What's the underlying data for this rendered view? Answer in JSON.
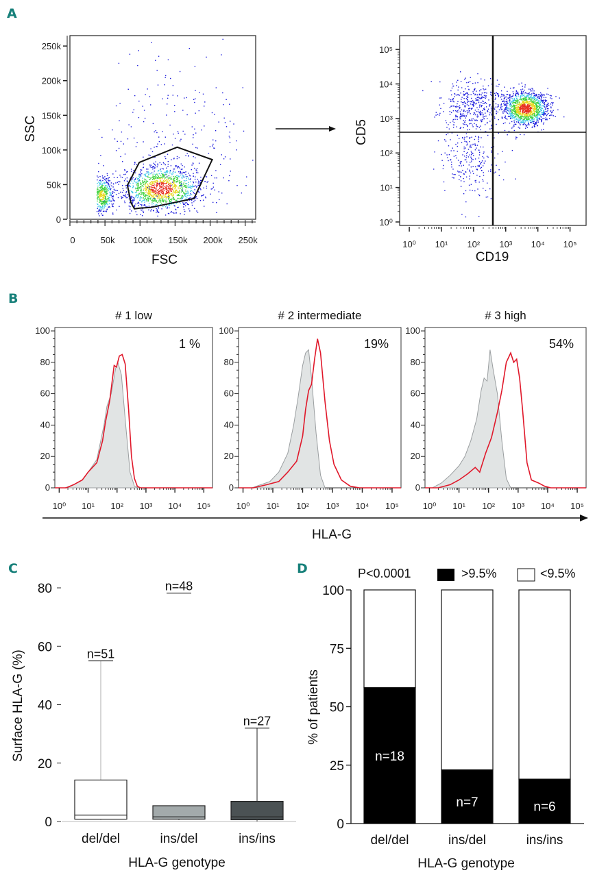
{
  "figure": {
    "panel_labels": [
      "A",
      "B",
      "C",
      "D"
    ],
    "accent_color": "#17807a"
  },
  "chart_data": [
    {
      "id": "A-left",
      "type": "scatter",
      "title": "",
      "xlabel": "FSC",
      "ylabel": "SSC",
      "xlim": [
        0,
        265000
      ],
      "ylim": [
        0,
        265000
      ],
      "x_ticks": [
        "0",
        "50k",
        "100k",
        "150k",
        "200k",
        "250k"
      ],
      "x_tick_values": [
        0,
        50000,
        100000,
        150000,
        200000,
        250000
      ],
      "y_ticks": [
        "0",
        "50k",
        "100k",
        "150k",
        "200k",
        "250k"
      ],
      "y_tick_values": [
        0,
        50000,
        100000,
        150000,
        200000,
        250000
      ],
      "density_colors": [
        "#1a1adc",
        "#3ec8e8",
        "#3ed23e",
        "#e8d820",
        "#e83020"
      ],
      "clusters": [
        {
          "name": "debris",
          "cx": 45000,
          "cy": 35000,
          "sx": 9000,
          "sy": 14000,
          "n": 500
        },
        {
          "name": "lymphocytes",
          "cx": 130000,
          "cy": 45000,
          "sx": 28000,
          "sy": 16000,
          "n": 1300
        },
        {
          "name": "scatter",
          "cx": 150000,
          "cy": 110000,
          "sx": 55000,
          "sy": 60000,
          "n": 260
        }
      ],
      "gate_polygon": [
        [
          92000,
          15000
        ],
        [
          100000,
          16000
        ],
        [
          115000,
          17000
        ],
        [
          177000,
          30000
        ],
        [
          203000,
          86000
        ],
        [
          153000,
          104000
        ],
        [
          99000,
          82000
        ],
        [
          82000,
          49000
        ],
        [
          87000,
          24000
        ]
      ]
    },
    {
      "id": "A-right",
      "type": "scatter",
      "title": "",
      "xlabel": "CD19",
      "ylabel": "CD5",
      "x_scale": "log",
      "y_scale": "log",
      "xlim_log10": [
        -0.3,
        5.5
      ],
      "ylim_log10": [
        -0.1,
        5.4
      ],
      "x_ticks": [
        "10⁰",
        "10¹",
        "10²",
        "10³",
        "10⁴",
        "10⁵"
      ],
      "y_ticks": [
        "10⁰",
        "10¹",
        "10²",
        "10³",
        "10⁴",
        "10⁵"
      ],
      "quadrant_x_log10": 2.6,
      "quadrant_y_log10": 2.6,
      "clusters": [
        {
          "name": "CD5+CD19+",
          "cx": 3.6,
          "cy": 3.3,
          "sx": 0.35,
          "sy": 0.25,
          "n": 1300
        },
        {
          "name": "CD5+CD19-",
          "cx": 2.0,
          "cy": 3.4,
          "sx": 0.5,
          "sy": 0.35,
          "n": 420
        },
        {
          "name": "CD5-CD19-",
          "cx": 1.9,
          "cy": 1.9,
          "sx": 0.45,
          "sy": 0.55,
          "n": 260
        }
      ]
    },
    {
      "id": "B",
      "type": "area",
      "xlabel": "HLA-G",
      "x_scale": "log",
      "xlim_log10": [
        -0.15,
        5.3
      ],
      "ylim": [
        0,
        100
      ],
      "y_ticks": [
        "0",
        "20",
        "40",
        "60",
        "80",
        "100"
      ],
      "x_ticks": [
        "10⁰",
        "10¹",
        "10²",
        "10³",
        "10⁴",
        "10⁵"
      ],
      "series_colors": {
        "isotype_fill": "#e1e4e4",
        "isotype_line": "#9a9ea0",
        "hla_g_line": "#e0182a"
      },
      "histograms": [
        {
          "title": "# 1 low",
          "percent_label": "1 %",
          "isotype": [
            [
              0.2,
              0
            ],
            [
              0.5,
              2
            ],
            [
              0.8,
              5
            ],
            [
              1.0,
              10
            ],
            [
              1.3,
              18
            ],
            [
              1.55,
              40
            ],
            [
              1.65,
              52
            ],
            [
              1.8,
              60
            ],
            [
              1.95,
              76
            ],
            [
              2.03,
              80
            ],
            [
              2.15,
              72
            ],
            [
              2.3,
              40
            ],
            [
              2.45,
              10
            ],
            [
              2.6,
              1
            ],
            [
              2.75,
              0
            ]
          ],
          "hla_g": [
            [
              0.25,
              0
            ],
            [
              0.5,
              2
            ],
            [
              0.8,
              5
            ],
            [
              1.0,
              10
            ],
            [
              1.3,
              16
            ],
            [
              1.5,
              30
            ],
            [
              1.6,
              42
            ],
            [
              1.75,
              56
            ],
            [
              1.9,
              78
            ],
            [
              1.98,
              77
            ],
            [
              2.08,
              84
            ],
            [
              2.18,
              85
            ],
            [
              2.28,
              79
            ],
            [
              2.4,
              50
            ],
            [
              2.5,
              20
            ],
            [
              2.6,
              6
            ],
            [
              2.7,
              1
            ],
            [
              2.8,
              0
            ]
          ]
        },
        {
          "title": "# 2 intermediate",
          "percent_label": "19%",
          "isotype": [
            [
              0.3,
              0
            ],
            [
              0.6,
              2
            ],
            [
              0.9,
              4
            ],
            [
              1.2,
              10
            ],
            [
              1.5,
              22
            ],
            [
              1.7,
              40
            ],
            [
              1.85,
              58
            ],
            [
              2.0,
              78
            ],
            [
              2.1,
              86
            ],
            [
              2.2,
              88
            ],
            [
              2.3,
              70
            ],
            [
              2.45,
              35
            ],
            [
              2.6,
              8
            ],
            [
              2.75,
              0
            ]
          ],
          "hla_g": [
            [
              0.35,
              0
            ],
            [
              0.8,
              2
            ],
            [
              1.2,
              4
            ],
            [
              1.5,
              10
            ],
            [
              1.8,
              17
            ],
            [
              2.0,
              33
            ],
            [
              2.1,
              50
            ],
            [
              2.2,
              62
            ],
            [
              2.3,
              66
            ],
            [
              2.4,
              82
            ],
            [
              2.5,
              95
            ],
            [
              2.6,
              86
            ],
            [
              2.75,
              55
            ],
            [
              2.9,
              30
            ],
            [
              3.05,
              15
            ],
            [
              3.3,
              5
            ],
            [
              3.6,
              1
            ],
            [
              3.9,
              0
            ]
          ]
        },
        {
          "title": "# 3 high",
          "percent_label": "54%",
          "isotype": [
            [
              0.1,
              0
            ],
            [
              0.4,
              3
            ],
            [
              0.7,
              8
            ],
            [
              1.0,
              14
            ],
            [
              1.2,
              20
            ],
            [
              1.4,
              30
            ],
            [
              1.6,
              44
            ],
            [
              1.75,
              62
            ],
            [
              1.85,
              70
            ],
            [
              1.95,
              68
            ],
            [
              2.05,
              88
            ],
            [
              2.15,
              76
            ],
            [
              2.3,
              60
            ],
            [
              2.45,
              30
            ],
            [
              2.6,
              6
            ],
            [
              2.75,
              0
            ]
          ],
          "hla_g": [
            [
              0.3,
              0
            ],
            [
              0.7,
              2
            ],
            [
              1.0,
              5
            ],
            [
              1.3,
              9
            ],
            [
              1.55,
              13
            ],
            [
              1.7,
              10
            ],
            [
              1.9,
              22
            ],
            [
              2.1,
              32
            ],
            [
              2.3,
              48
            ],
            [
              2.45,
              62
            ],
            [
              2.6,
              80
            ],
            [
              2.75,
              86
            ],
            [
              2.85,
              80
            ],
            [
              2.95,
              82
            ],
            [
              3.05,
              70
            ],
            [
              3.15,
              50
            ],
            [
              3.3,
              16
            ],
            [
              3.45,
              5
            ],
            [
              3.7,
              3
            ],
            [
              3.9,
              1
            ],
            [
              4.1,
              0
            ]
          ]
        }
      ]
    },
    {
      "id": "C",
      "type": "box",
      "xlabel": "HLA-G genotype",
      "ylabel": "Surface HLA-G (%)",
      "ylim": [
        0,
        80
      ],
      "y_ticks": [
        "0",
        "20",
        "40",
        "60",
        "80"
      ],
      "y_tick_values": [
        0,
        20,
        40,
        60,
        80
      ],
      "categories": [
        "del/del",
        "ins/del",
        "ins/ins"
      ],
      "n_labels": [
        "n=51",
        "n=48",
        "n=27"
      ],
      "boxes": [
        {
          "min": 0.5,
          "q1": 0.8,
          "median": 2.2,
          "q3": 14.2,
          "max": 55.0,
          "fill": "#ffffff",
          "whisker": "#bbbbbb"
        },
        {
          "min": 0.5,
          "q1": 0.8,
          "median": 1.6,
          "q3": 5.4,
          "max": 5.4,
          "fill": "#a3aaab",
          "whisker": "#555555"
        },
        {
          "min": 0.0,
          "q1": 0.6,
          "median": 1.6,
          "q3": 6.9,
          "max": 32.0,
          "fill": "#4b5254",
          "whisker": "#444444"
        }
      ]
    },
    {
      "id": "D",
      "type": "bar",
      "stacked": true,
      "xlabel": "HLA-G genotype",
      "ylabel": "% of patients",
      "annotation": "P<0.0001",
      "ylim": [
        0,
        100
      ],
      "y_ticks": [
        "0",
        "25",
        "50",
        "75",
        "100"
      ],
      "y_tick_values": [
        0,
        25,
        50,
        75,
        100
      ],
      "legend": [
        {
          "label": ">9.5%",
          "color": "#000000"
        },
        {
          "label": "<9.5%",
          "color": "#ffffff"
        }
      ],
      "legend_position": "top-right",
      "categories": [
        "del/del",
        "ins/del",
        "ins/ins"
      ],
      "series": [
        {
          "name": ">9.5%",
          "values": [
            58.2,
            23.0,
            19.0
          ],
          "labels": [
            "n=18",
            "n=7",
            "n=6"
          ]
        },
        {
          "name": "<9.5%",
          "values": [
            41.8,
            77.0,
            81.0
          ]
        }
      ]
    }
  ]
}
